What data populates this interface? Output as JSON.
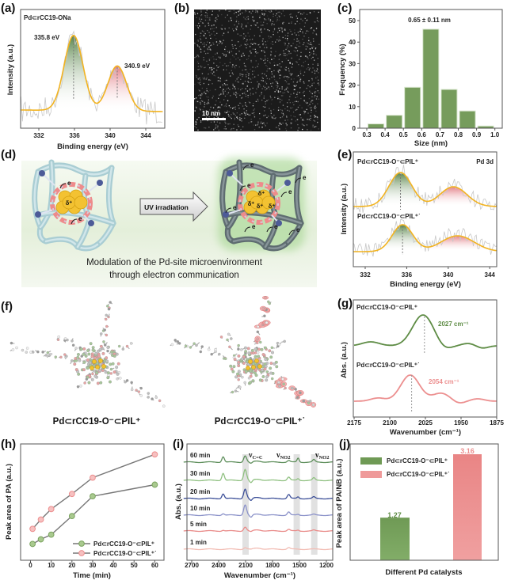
{
  "figure": {
    "panel_labels": [
      "(a)",
      "(b)",
      "(c)",
      "(d)",
      "(e)",
      "(f)",
      "(g)",
      "(h)",
      "(i)",
      "(j)"
    ]
  },
  "panel_b": {
    "scale_bar": "10 nm"
  },
  "panel_d": {
    "button": "UV irradiation",
    "caption_line1": "Modulation of the Pd-site microenvironment",
    "caption_line2": "through electron communication",
    "electron": "e",
    "delta": "δ⁺"
  },
  "panel_f": {
    "left_label": "Pd⊂rCC19-O⁻⊂PIL⁺",
    "right_label": "Pd⊂rCC19-O⁻⊂PIL⁺˙"
  },
  "colors": {
    "green": "#6a9a52",
    "green_dark": "#4f7d3f",
    "pink": "#ec8f8f",
    "fit_orange": "#f2b320",
    "raw_gray": "#c8c8c8"
  },
  "chart_data": [
    {
      "panel": "a",
      "type": "line",
      "sample_label": "Pd⊂rCC19-ONa",
      "xlabel": "Binding energy (eV)",
      "ylabel": "Intensity (a.u.)",
      "xlim": [
        330,
        346
      ],
      "xticks": [
        "332",
        "336",
        "340",
        "344"
      ],
      "peaks": [
        {
          "position": 335.8,
          "label": "335.8 eV",
          "relative_intensity": 1.0
        },
        {
          "position": 340.9,
          "label": "340.9 eV",
          "relative_intensity": 0.6
        }
      ]
    },
    {
      "panel": "c",
      "type": "bar",
      "annotation": "0.65 ± 0.11 nm",
      "xlabel": "Size (nm)",
      "ylabel": "Frequency (%)",
      "xticks": [
        "0.3",
        "0.4",
        "0.5",
        "0.6",
        "0.7",
        "0.8",
        "0.9",
        "1.0"
      ],
      "bins": [
        [
          0.3,
          0.4
        ],
        [
          0.4,
          0.5
        ],
        [
          0.5,
          0.6
        ],
        [
          0.6,
          0.7
        ],
        [
          0.7,
          0.8
        ],
        [
          0.8,
          0.9
        ],
        [
          0.9,
          1.0
        ]
      ],
      "values": [
        2,
        6,
        19,
        46,
        18,
        8,
        1
      ],
      "ylim": [
        0,
        50
      ],
      "yticks": [
        "0",
        "10",
        "20",
        "30",
        "40",
        "50"
      ]
    },
    {
      "panel": "e",
      "type": "line",
      "title": "Pd 3d",
      "xlabel": "Binding energy (eV)",
      "ylabel": "Intensity (a.u.)",
      "xlim": [
        331,
        345
      ],
      "xticks": [
        "332",
        "336",
        "340",
        "344"
      ],
      "series": [
        {
          "name": "Pd⊂rCC19-O⁻⊂PIL⁺",
          "peaks": [
            335.4,
            340.5
          ],
          "relative_intensity": [
            1.0,
            0.58
          ]
        },
        {
          "name": "Pd⊂rCC19-O⁻⊂PIL⁺˙",
          "peaks": [
            335.6,
            340.9
          ],
          "relative_intensity": [
            1.0,
            0.59
          ]
        }
      ]
    },
    {
      "panel": "g",
      "type": "line",
      "xlabel": "Wavenumber (cm⁻¹)",
      "ylabel": "Abs. (a.u.)",
      "xlim": [
        2175,
        1875
      ],
      "xticks": [
        "2175",
        "2100",
        "2025",
        "1950",
        "1875"
      ],
      "series": [
        {
          "name": "Pd⊂rCC19-O⁻⊂PIL⁺",
          "peak": 2027,
          "peak_label": "2027 cm⁻¹"
        },
        {
          "name": "Pd⊂rCC19-O⁻⊂PIL⁺˙",
          "peak": 2054,
          "peak_label": "2054 cm⁻¹"
        }
      ]
    },
    {
      "panel": "h",
      "type": "line",
      "xlabel": "Time (min)",
      "ylabel": "Peak area of PA (a.u.)",
      "xlim": [
        -5,
        65
      ],
      "xticks": [
        "0",
        "10",
        "20",
        "30",
        "40",
        "50",
        "60"
      ],
      "x": [
        1,
        5,
        10,
        20,
        30,
        60
      ],
      "series": [
        {
          "name": "Pd⊂rCC19-O⁻⊂PIL⁺",
          "values": [
            0.14,
            0.18,
            0.22,
            0.38,
            0.55,
            0.65
          ]
        },
        {
          "name": "Pd⊂rCC19-O⁻⊂PIL⁺˙",
          "values": [
            0.27,
            0.35,
            0.44,
            0.57,
            0.71,
            0.91
          ]
        }
      ],
      "legend": "bottom-right"
    },
    {
      "panel": "i",
      "type": "line",
      "xlabel": "Wavenumber (cm⁻¹)",
      "ylabel": "Abs. (a.u.)",
      "xlim": [
        2790,
        1130
      ],
      "xticks": [
        "2700",
        "2400",
        "2100",
        "1800",
        "1500",
        "1200"
      ],
      "series": [
        {
          "name": "60 min",
          "color": "#5f8f5c"
        },
        {
          "name": "30 min",
          "color": "#8fc080"
        },
        {
          "name": "20 min",
          "color": "#3c4f98"
        },
        {
          "name": "10 min",
          "color": "#8b92c9"
        },
        {
          "name": "5 min",
          "color": "#e98c8a"
        },
        {
          "name": "1 min",
          "color": "#f2bdb4"
        }
      ],
      "bands": [
        2100,
        1530,
        1335
      ],
      "annotations": [
        {
          "symbol": "ν",
          "subscript": "C=C"
        },
        {
          "symbol": "ν",
          "subscript": "NO2"
        },
        {
          "symbol": "ν",
          "subscript": "NO2"
        }
      ]
    },
    {
      "panel": "j",
      "type": "bar",
      "xlabel": "Different Pd catalysts",
      "ylabel": "Peak area of PA/NB (a.u.)",
      "categories": [
        "Pd⊂rCC19-O⁻⊂PIL⁺",
        "Pd⊂rCC19-O⁻⊂PIL⁺˙"
      ],
      "values": [
        1.27,
        3.16
      ],
      "value_labels": [
        "1.27",
        "3.16"
      ],
      "legend": "top-left"
    }
  ]
}
